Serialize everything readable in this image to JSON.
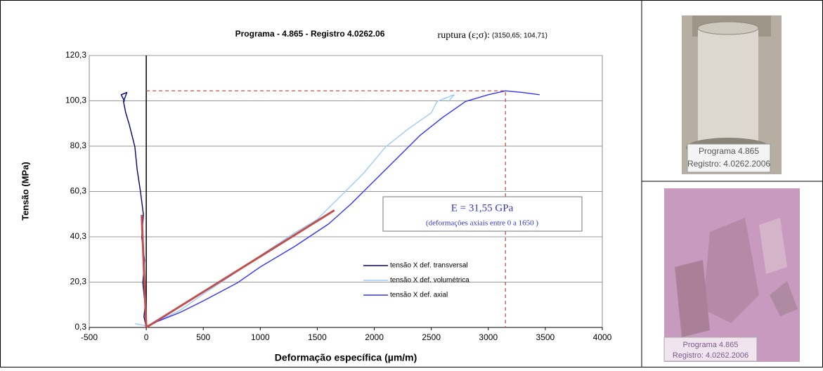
{
  "chart_data": {
    "type": "line",
    "title": "Programa - 4.865 - Registro  4.0262.06",
    "xlabel": "Deformação específica (µm/m)",
    "ylabel": "Tensão (MPa)",
    "xlim": [
      -500,
      4000
    ],
    "xticks": [
      -500,
      0,
      500,
      1000,
      1500,
      2000,
      2500,
      3000,
      3500,
      4000
    ],
    "ylim": [
      0.3,
      120.3
    ],
    "yticks": [
      {
        "value": 0.3,
        "label": "0,3"
      },
      {
        "value": 20.3,
        "label": "20,3"
      },
      {
        "value": 40.3,
        "label": "40,3"
      },
      {
        "value": 60.3,
        "label": "60,3"
      },
      {
        "value": 80.3,
        "label": "80,3"
      },
      {
        "value": 100.3,
        "label": "100,3"
      },
      {
        "value": 120.3,
        "label": "120,3"
      }
    ],
    "grid": true,
    "series": [
      {
        "name": "tensão X def. transversal",
        "color": "#000080",
        "x": [
          0,
          -20,
          -10,
          -30,
          -15,
          -40,
          -25,
          -50,
          -80,
          -100,
          -150,
          -180,
          -200,
          -170,
          -220,
          -190
        ],
        "values": [
          0.3,
          5,
          10,
          20,
          30,
          40,
          50,
          60,
          70,
          80,
          90,
          95,
          100,
          104,
          103,
          100
        ]
      },
      {
        "name": "tensão X def. volumétrica",
        "color": "#99ccff",
        "x": [
          -100,
          0,
          100,
          300,
          500,
          800,
          1000,
          1300,
          1500,
          1700,
          1900,
          2100,
          2300,
          2500,
          2550,
          2700,
          2650
        ],
        "values": [
          2,
          1,
          3,
          8,
          15,
          25,
          32,
          42,
          48,
          58,
          68,
          80,
          88,
          95,
          100,
          103,
          100
        ]
      },
      {
        "name": "tensão X def. axial",
        "color": "#3333ff",
        "x": [
          0,
          100,
          300,
          500,
          800,
          1000,
          1300,
          1600,
          1800,
          2000,
          2200,
          2400,
          2600,
          2800,
          3000,
          3150,
          3300,
          3450
        ],
        "values": [
          0.3,
          3,
          7,
          12,
          20,
          27,
          36,
          46,
          55,
          65,
          75,
          85,
          93,
          100,
          103,
          104.71,
          104,
          103
        ]
      }
    ],
    "fit_lines": [
      {
        "color": "#c0504d",
        "x": [
          0,
          1650
        ],
        "values": [
          0.3,
          52
        ]
      },
      {
        "color": "#c0504d",
        "x": [
          0,
          -40
        ],
        "values": [
          0.3,
          50
        ]
      }
    ],
    "rupture": {
      "label": "ruptura (ε;σ):",
      "value_label": "(3150,65; 104,71)",
      "x": 3150.65,
      "y": 104.71,
      "color": "#c0504d"
    },
    "modulus_box": {
      "text": "E = 31,55 GPa",
      "note": "(deformações axiais entre 0 a 1650 )"
    }
  },
  "photos": [
    {
      "caption": [
        "Programa 4.865",
        "Registro: 4.0262.2006"
      ]
    },
    {
      "caption": [
        "Programa 4.865",
        "Registro: 4.0262.2006"
      ]
    }
  ]
}
